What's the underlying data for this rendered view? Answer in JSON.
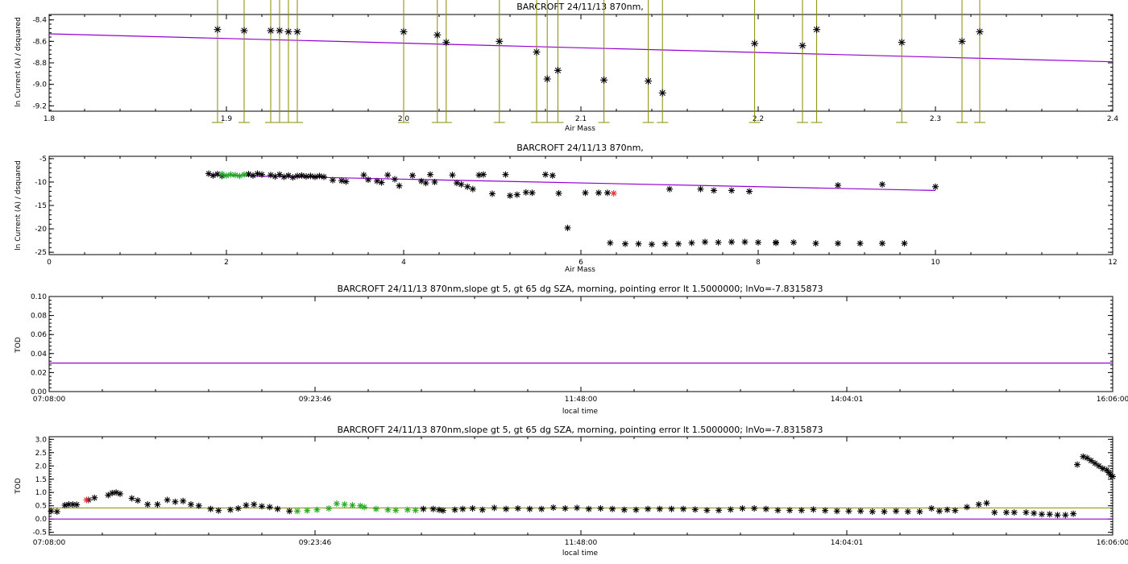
{
  "chart_data": [
    {
      "type": "scatter",
      "title": "BARCROFT 24/11/13 870nm,",
      "xlabel": "Air Mass",
      "ylabel": "ln Current (A) / dsquared",
      "xlim": [
        1.8,
        2.4
      ],
      "ylim": [
        -9.25,
        -8.35
      ],
      "xticks": [
        "1.8",
        "1.9",
        "2.0",
        "2.1",
        "2.2",
        "2.3",
        "2.4"
      ],
      "yticks": [
        "-8.4",
        "-8.6",
        "-8.8",
        "-9.0",
        "-9.2"
      ],
      "marker_color": "#000000",
      "errorbar_color": "#8b8b00",
      "fit_color": "#9400d3",
      "fit_line": {
        "x": [
          1.8,
          2.4
        ],
        "y": [
          -8.53,
          -8.79
        ]
      },
      "points": [
        {
          "x": 1.895,
          "y": -8.49
        },
        {
          "x": 1.91,
          "y": -8.5
        },
        {
          "x": 1.925,
          "y": -8.5
        },
        {
          "x": 1.93,
          "y": -8.5
        },
        {
          "x": 1.935,
          "y": -8.51
        },
        {
          "x": 1.94,
          "y": -8.51
        },
        {
          "x": 2.0,
          "y": -8.51
        },
        {
          "x": 2.019,
          "y": -8.54
        },
        {
          "x": 2.024,
          "y": -8.61
        },
        {
          "x": 2.054,
          "y": -8.6
        },
        {
          "x": 2.075,
          "y": -8.7
        },
        {
          "x": 2.081,
          "y": -8.95
        },
        {
          "x": 2.087,
          "y": -8.87
        },
        {
          "x": 2.113,
          "y": -8.96
        },
        {
          "x": 2.138,
          "y": -8.97
        },
        {
          "x": 2.146,
          "y": -9.08
        },
        {
          "x": 2.198,
          "y": -8.62
        },
        {
          "x": 2.225,
          "y": -8.64
        },
        {
          "x": 2.233,
          "y": -8.49
        },
        {
          "x": 2.281,
          "y": -8.61
        },
        {
          "x": 2.315,
          "y": -8.6
        },
        {
          "x": 2.325,
          "y": -8.51
        }
      ]
    },
    {
      "type": "scatter",
      "title": "BARCROFT 24/11/13 870nm,",
      "xlabel": "Air Mass",
      "ylabel": "ln Current (A) / dsquared",
      "xlim": [
        0,
        12
      ],
      "ylim": [
        -25.5,
        -4.5
      ],
      "xticks": [
        "0",
        "2",
        "4",
        "6",
        "8",
        "10",
        "12"
      ],
      "yticks": [
        "-5",
        "-10",
        "-15",
        "-20",
        "-25"
      ],
      "fit_color": "#9400d3",
      "fit_line": {
        "x": [
          1.8,
          10.0
        ],
        "y": [
          -8.5,
          -11.8
        ]
      },
      "series": [
        {
          "color": "#000000",
          "points": [
            [
              1.8,
              -8.2
            ],
            [
              1.85,
              -8.6
            ],
            [
              1.9,
              -8.3
            ],
            [
              1.95,
              -8.7
            ],
            [
              2.25,
              -8.3
            ],
            [
              2.3,
              -8.6
            ],
            [
              2.35,
              -8.2
            ],
            [
              2.4,
              -8.4
            ],
            [
              2.5,
              -8.5
            ],
            [
              2.55,
              -8.8
            ],
            [
              2.6,
              -8.4
            ],
            [
              2.65,
              -8.9
            ],
            [
              2.7,
              -8.6
            ],
            [
              2.75,
              -9.0
            ],
            [
              2.8,
              -8.7
            ],
            [
              2.85,
              -8.6
            ],
            [
              2.9,
              -8.8
            ],
            [
              2.95,
              -8.7
            ],
            [
              3.0,
              -8.9
            ],
            [
              3.05,
              -8.7
            ],
            [
              3.1,
              -8.9
            ],
            [
              3.2,
              -9.6
            ],
            [
              3.3,
              -9.7
            ],
            [
              3.35,
              -9.9
            ],
            [
              3.55,
              -8.5
            ],
            [
              3.6,
              -9.5
            ],
            [
              3.7,
              -9.8
            ],
            [
              3.75,
              -10.1
            ],
            [
              3.82,
              -8.5
            ],
            [
              3.9,
              -9.4
            ],
            [
              3.95,
              -10.8
            ],
            [
              4.1,
              -8.6
            ],
            [
              4.2,
              -9.8
            ],
            [
              4.25,
              -10.2
            ],
            [
              4.3,
              -8.4
            ],
            [
              4.35,
              -10.0
            ],
            [
              4.55,
              -8.5
            ],
            [
              4.6,
              -10.2
            ],
            [
              4.65,
              -10.5
            ],
            [
              4.72,
              -11.0
            ],
            [
              4.78,
              -11.5
            ],
            [
              4.85,
              -8.5
            ],
            [
              4.9,
              -8.4
            ],
            [
              5.0,
              -12.5
            ],
            [
              5.15,
              -8.4
            ],
            [
              5.2,
              -12.9
            ],
            [
              5.28,
              -12.7
            ],
            [
              5.38,
              -12.2
            ],
            [
              5.45,
              -12.3
            ],
            [
              5.6,
              -8.4
            ],
            [
              5.68,
              -8.6
            ],
            [
              5.75,
              -12.4
            ],
            [
              5.85,
              -19.8
            ],
            [
              6.05,
              -12.3
            ],
            [
              6.2,
              -12.3
            ],
            [
              6.3,
              -12.3
            ],
            [
              6.33,
              -23.0
            ],
            [
              6.5,
              -23.2
            ],
            [
              6.65,
              -23.2
            ],
            [
              6.8,
              -23.3
            ],
            [
              6.95,
              -23.2
            ],
            [
              7.1,
              -23.2
            ],
            [
              7.25,
              -23.0
            ],
            [
              7.4,
              -22.8
            ],
            [
              7.55,
              -22.9
            ],
            [
              7.7,
              -22.8
            ],
            [
              7.85,
              -22.8
            ],
            [
              8.0,
              -22.9
            ],
            [
              8.2,
              -22.9
            ],
            [
              8.4,
              -22.9
            ],
            [
              8.65,
              -23.1
            ],
            [
              8.9,
              -23.1
            ],
            [
              9.15,
              -23.1
            ],
            [
              9.4,
              -23.1
            ],
            [
              9.65,
              -23.1
            ],
            [
              7.0,
              -11.5
            ],
            [
              7.35,
              -11.5
            ],
            [
              7.5,
              -11.8
            ],
            [
              7.7,
              -11.8
            ],
            [
              7.9,
              -12.0
            ],
            [
              8.2,
              -23.0
            ],
            [
              8.9,
              -10.7
            ],
            [
              9.4,
              -10.5
            ],
            [
              10.0,
              -11.0
            ]
          ]
        },
        {
          "color": "#22aa22",
          "points": [
            [
              1.95,
              -8.3
            ],
            [
              2.0,
              -8.6
            ],
            [
              2.05,
              -8.4
            ],
            [
              2.1,
              -8.5
            ],
            [
              2.15,
              -8.7
            ],
            [
              2.2,
              -8.4
            ]
          ]
        },
        {
          "color": "#e0303a",
          "points": [
            [
              6.37,
              -12.4
            ]
          ]
        }
      ]
    },
    {
      "type": "line",
      "title": "BARCROFT 24/11/13 870nm,slope gt 5, gt 65 dg SZA, morning, pointing error lt 1.5000000; lnVo=-7.8315873",
      "xlabel": "local time",
      "ylabel": "TOD",
      "xlim": [
        0,
        540
      ],
      "ylim": [
        0.0,
        0.1
      ],
      "xticks": [
        "07:08:00",
        "09:23:46",
        "11:48:00",
        "14:04:01",
        "16:06:00"
      ],
      "yticks": [
        "0.10",
        "0.08",
        "0.06",
        "0.04",
        "0.02",
        "0.00"
      ],
      "lines": [
        {
          "color": "#9400d3",
          "y": 0.03
        }
      ]
    },
    {
      "type": "scatter",
      "title": "BARCROFT 24/11/13 870nm,slope gt 5, gt 65 dg SZA, morning, pointing error lt 1.5000000; lnVo=-7.8315873",
      "xlabel": "local time",
      "ylabel": "TOD",
      "xlim": [
        0,
        540
      ],
      "ylim": [
        -0.6,
        3.1
      ],
      "xticks": [
        "07:08:00",
        "09:23:46",
        "11:48:00",
        "14:04:01",
        "16:06:00"
      ],
      "yticks": [
        "3.0",
        "2.5",
        "2.0",
        "1.5",
        "1.0",
        "0.5",
        "0.0",
        "-0.5"
      ],
      "hlines": [
        {
          "color": "#9400d3",
          "y": 0.0
        },
        {
          "color": "#8b8b00",
          "y": 0.42
        }
      ],
      "series": [
        {
          "color": "#000000",
          "points": [
            [
              1,
              0.3
            ],
            [
              4,
              0.28
            ],
            [
              8,
              0.52
            ],
            [
              10,
              0.55
            ],
            [
              12,
              0.55
            ],
            [
              14,
              0.54
            ],
            [
              20,
              0.72
            ],
            [
              23,
              0.8
            ],
            [
              30,
              0.9
            ],
            [
              32,
              0.98
            ],
            [
              34,
              1.0
            ],
            [
              36,
              0.95
            ],
            [
              42,
              0.78
            ],
            [
              45,
              0.7
            ],
            [
              50,
              0.55
            ],
            [
              55,
              0.55
            ],
            [
              60,
              0.72
            ],
            [
              64,
              0.65
            ],
            [
              68,
              0.68
            ],
            [
              72,
              0.55
            ],
            [
              76,
              0.5
            ],
            [
              82,
              0.38
            ],
            [
              86,
              0.32
            ],
            [
              92,
              0.35
            ],
            [
              96,
              0.4
            ],
            [
              100,
              0.52
            ],
            [
              104,
              0.55
            ],
            [
              108,
              0.48
            ],
            [
              112,
              0.45
            ],
            [
              116,
              0.38
            ],
            [
              122,
              0.3
            ],
            [
              190,
              0.38
            ],
            [
              195,
              0.38
            ],
            [
              198,
              0.35
            ],
            [
              200,
              0.32
            ],
            [
              206,
              0.35
            ],
            [
              210,
              0.38
            ],
            [
              215,
              0.4
            ],
            [
              220,
              0.35
            ],
            [
              226,
              0.42
            ],
            [
              232,
              0.38
            ],
            [
              238,
              0.4
            ],
            [
              244,
              0.38
            ],
            [
              250,
              0.38
            ],
            [
              256,
              0.43
            ],
            [
              262,
              0.4
            ],
            [
              268,
              0.42
            ],
            [
              274,
              0.38
            ],
            [
              280,
              0.4
            ],
            [
              286,
              0.38
            ],
            [
              292,
              0.35
            ],
            [
              298,
              0.35
            ],
            [
              304,
              0.38
            ],
            [
              310,
              0.38
            ],
            [
              316,
              0.38
            ],
            [
              322,
              0.38
            ],
            [
              328,
              0.36
            ],
            [
              334,
              0.33
            ],
            [
              340,
              0.33
            ],
            [
              346,
              0.36
            ],
            [
              352,
              0.4
            ],
            [
              358,
              0.4
            ],
            [
              364,
              0.38
            ],
            [
              370,
              0.33
            ],
            [
              376,
              0.33
            ],
            [
              382,
              0.33
            ],
            [
              388,
              0.36
            ],
            [
              394,
              0.32
            ],
            [
              400,
              0.3
            ],
            [
              406,
              0.3
            ],
            [
              412,
              0.3
            ],
            [
              418,
              0.28
            ],
            [
              424,
              0.28
            ],
            [
              430,
              0.3
            ],
            [
              436,
              0.28
            ],
            [
              442,
              0.28
            ],
            [
              448,
              0.4
            ],
            [
              452,
              0.3
            ],
            [
              456,
              0.35
            ],
            [
              460,
              0.32
            ],
            [
              466,
              0.45
            ],
            [
              472,
              0.55
            ],
            [
              476,
              0.6
            ],
            [
              480,
              0.25
            ],
            [
              486,
              0.25
            ],
            [
              490,
              0.25
            ],
            [
              496,
              0.25
            ],
            [
              500,
              0.22
            ],
            [
              504,
              0.18
            ],
            [
              508,
              0.18
            ],
            [
              512,
              0.15
            ],
            [
              516,
              0.15
            ],
            [
              520,
              0.2
            ],
            [
              522,
              2.05
            ],
            [
              525,
              2.35
            ],
            [
              527,
              2.3
            ],
            [
              529,
              2.2
            ],
            [
              531,
              2.1
            ],
            [
              533,
              2.0
            ],
            [
              535,
              1.9
            ],
            [
              537,
              1.85
            ],
            [
              538,
              1.75
            ],
            [
              539,
              1.65
            ],
            [
              540,
              1.6
            ]
          ]
        },
        {
          "color": "#22aa22",
          "points": [
            [
              126,
              0.3
            ],
            [
              131,
              0.32
            ],
            [
              136,
              0.35
            ],
            [
              142,
              0.4
            ],
            [
              146,
              0.58
            ],
            [
              150,
              0.55
            ],
            [
              154,
              0.52
            ],
            [
              158,
              0.5
            ],
            [
              160,
              0.45
            ],
            [
              166,
              0.38
            ],
            [
              172,
              0.35
            ],
            [
              176,
              0.33
            ],
            [
              182,
              0.35
            ],
            [
              186,
              0.33
            ]
          ]
        },
        {
          "color": "#e0303a",
          "points": [
            [
              19,
              0.72
            ]
          ]
        }
      ]
    }
  ]
}
